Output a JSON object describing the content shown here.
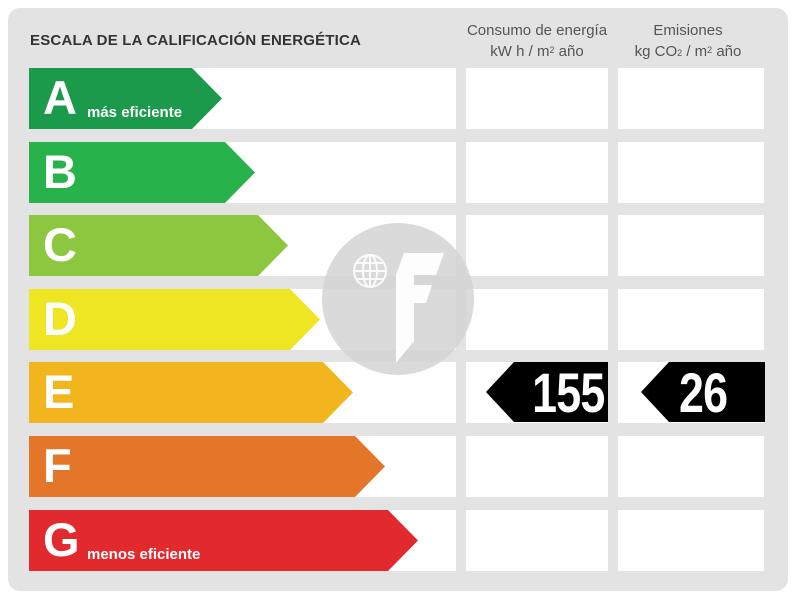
{
  "header": {
    "title": "ESCALA DE LA CALIFICACIÓN ENERGÉTICA",
    "consumo_line1": "Consumo de energía",
    "consumo_line2_pre": "kW h  / m",
    "consumo_line2_sup": "2",
    "consumo_line2_post": " año",
    "emisiones_line1": "Emisiones",
    "emisiones_line2_pre": "kg CO",
    "emisiones_line2_sub": "2",
    "emisiones_line2_mid": "  / m",
    "emisiones_line2_sup": "2",
    "emisiones_line2_post": " año"
  },
  "ratings": [
    {
      "letter": "A",
      "note": "más eficiente",
      "color": "#1a9a4a"
    },
    {
      "letter": "B",
      "note": "",
      "color": "#28b24b"
    },
    {
      "letter": "C",
      "note": "",
      "color": "#8dc63f"
    },
    {
      "letter": "D",
      "note": "",
      "color": "#eee523"
    },
    {
      "letter": "E",
      "note": "",
      "color": "#f2b51d"
    },
    {
      "letter": "F",
      "note": "",
      "color": "#e4762a"
    },
    {
      "letter": "G",
      "note": "menos eficiente",
      "color": "#e2292d"
    }
  ],
  "current": {
    "rating": "E",
    "consumo_value": "155",
    "emisiones_value": "26"
  },
  "colors": {
    "panel": "#e3e3e3",
    "indicator": "#000000"
  },
  "watermark": {
    "icon": "fotocasa-logo-watermark-icon"
  }
}
